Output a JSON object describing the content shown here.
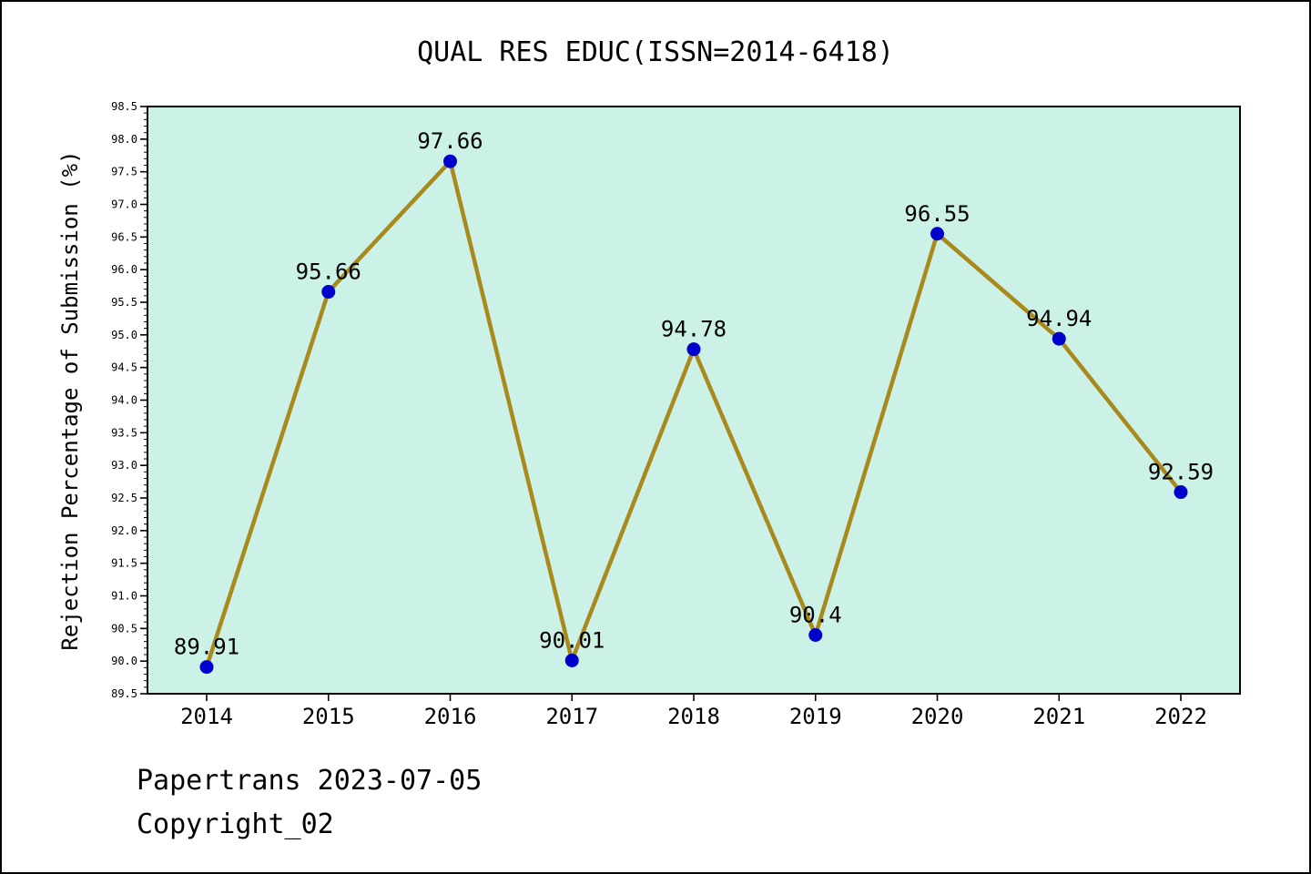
{
  "page": {
    "title": "QUAL RES EDUC(ISSN=2014-6418)",
    "footer_line1": "Papertrans 2023-07-05",
    "footer_line2": "Copyright_02"
  },
  "chart_data": {
    "type": "line",
    "title": "QUAL RES EDUC(ISSN=2014-6418)",
    "x": [
      2014,
      2015,
      2016,
      2017,
      2018,
      2019,
      2020,
      2021,
      2022
    ],
    "values": [
      89.91,
      95.66,
      97.66,
      90.01,
      94.78,
      90.4,
      96.55,
      94.94,
      92.59
    ],
    "point_labels": [
      "89.91",
      "95.66",
      "97.66",
      "90.01",
      "94.78",
      "90.4",
      "96.55",
      "94.94",
      "92.59"
    ],
    "xlabel": "",
    "ylabel": "Rejection Percentage of Submission (%)",
    "ylim": [
      89.5,
      98.5
    ],
    "y_major_step": 0.5,
    "y_minor_step": 0.1,
    "grid": false,
    "legend": "none",
    "colors": {
      "line": "#A8891B",
      "marker": "#0000CC",
      "plot_bg": "#CCF2E8",
      "axis": "#000000",
      "text": "#000000"
    }
  }
}
